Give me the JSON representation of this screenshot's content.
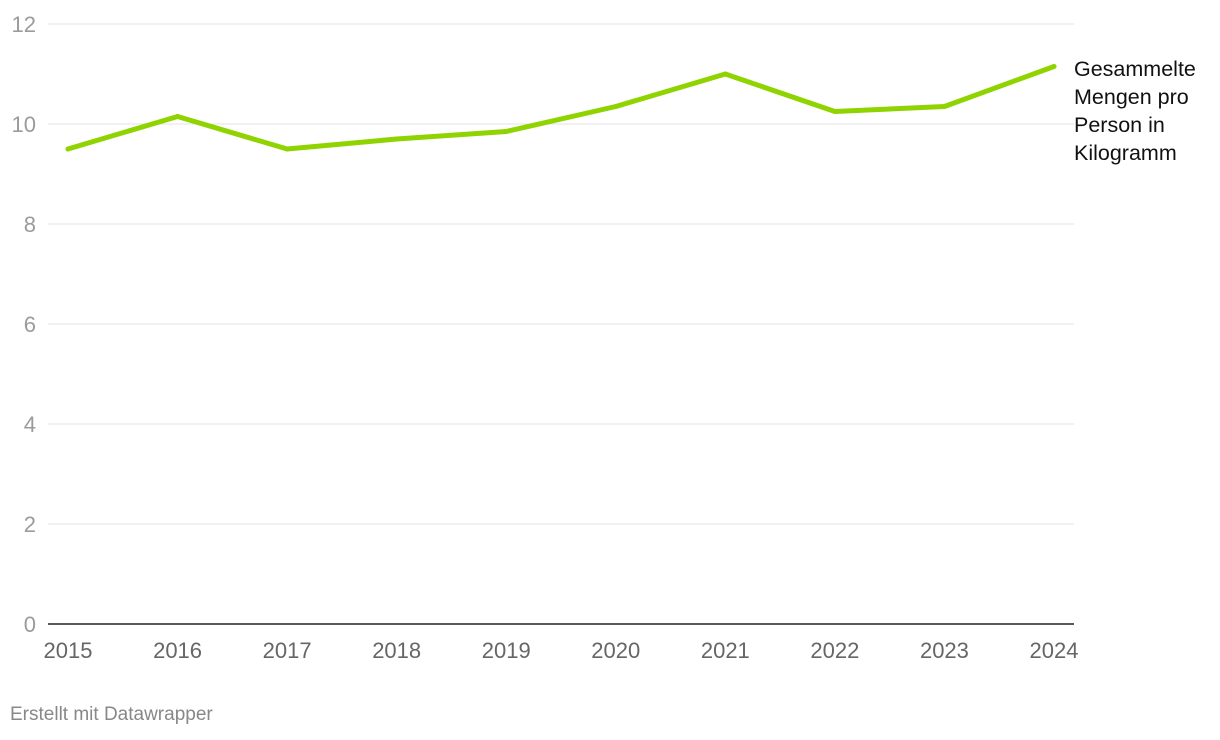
{
  "chart_data": {
    "type": "line",
    "title": "",
    "xlabel": "",
    "ylabel": "",
    "x": [
      "2015",
      "2016",
      "2017",
      "2018",
      "2019",
      "2020",
      "2021",
      "2022",
      "2023",
      "2024"
    ],
    "series": [
      {
        "name": "Gesammelte Mengen pro Person in Kilogramm",
        "values": [
          9.5,
          10.15,
          9.5,
          9.7,
          9.85,
          10.35,
          11.0,
          10.25,
          10.35,
          11.15
        ],
        "color": "#8fd400"
      }
    ],
    "ylim": [
      0,
      12
    ],
    "yticks": [
      "0",
      "2",
      "4",
      "6",
      "8",
      "10",
      "12"
    ],
    "grid": true,
    "legend": "direct label at line end, right"
  },
  "footer": {
    "credit": "Erstellt mit Datawrapper"
  }
}
